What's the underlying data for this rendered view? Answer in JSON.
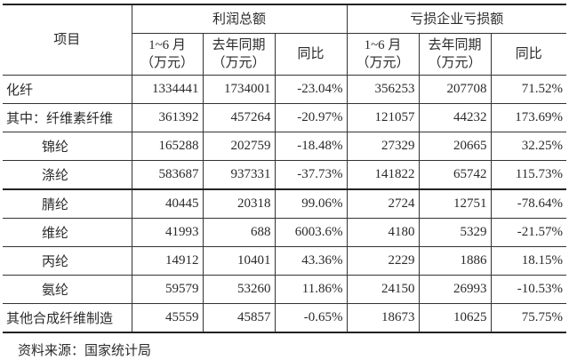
{
  "table": {
    "item_header": "项目",
    "groups": [
      "利润总额",
      "亏损企业亏损额"
    ],
    "sub_headers": [
      [
        "1~6 月",
        "（万元）"
      ],
      [
        "去年同期",
        "（万元）"
      ],
      [
        "同比"
      ],
      [
        "1~6 月",
        "（万元）"
      ],
      [
        "去年同期",
        "（万元）"
      ],
      [
        "同比"
      ]
    ],
    "rows": [
      {
        "label": "化纤",
        "values": [
          "1334441",
          "1734001",
          "-23.04%",
          "356253",
          "207708",
          "71.52%"
        ]
      },
      {
        "label": "其中：纤维素纤维",
        "values": [
          "361392",
          "457264",
          "-20.97%",
          "121057",
          "44232",
          "173.69%"
        ]
      },
      {
        "label": "锦纶",
        "values": [
          "165288",
          "202759",
          "-18.48%",
          "27329",
          "20665",
          "32.25%"
        ]
      },
      {
        "label": "涤纶",
        "values": [
          "583687",
          "937331",
          "-37.73%",
          "141822",
          "65742",
          "115.73%"
        ]
      },
      {
        "label": "腈纶",
        "values": [
          "40445",
          "20318",
          "99.06%",
          "2724",
          "12751",
          "-78.64%"
        ]
      },
      {
        "label": "维纶",
        "values": [
          "41993",
          "688",
          "6003.6%",
          "4180",
          "5329",
          "-21.57%"
        ]
      },
      {
        "label": "丙纶",
        "values": [
          "14912",
          "10401",
          "43.36%",
          "2229",
          "1886",
          "18.15%"
        ]
      },
      {
        "label": "氨纶",
        "values": [
          "59579",
          "53260",
          "11.86%",
          "24150",
          "26993",
          "-10.53%"
        ]
      },
      {
        "label": "其他合成纤维制造",
        "values": [
          "45559",
          "45857",
          "-0.65%",
          "18673",
          "10625",
          "75.75%"
        ]
      }
    ]
  },
  "source": "资料来源：国家统计局"
}
